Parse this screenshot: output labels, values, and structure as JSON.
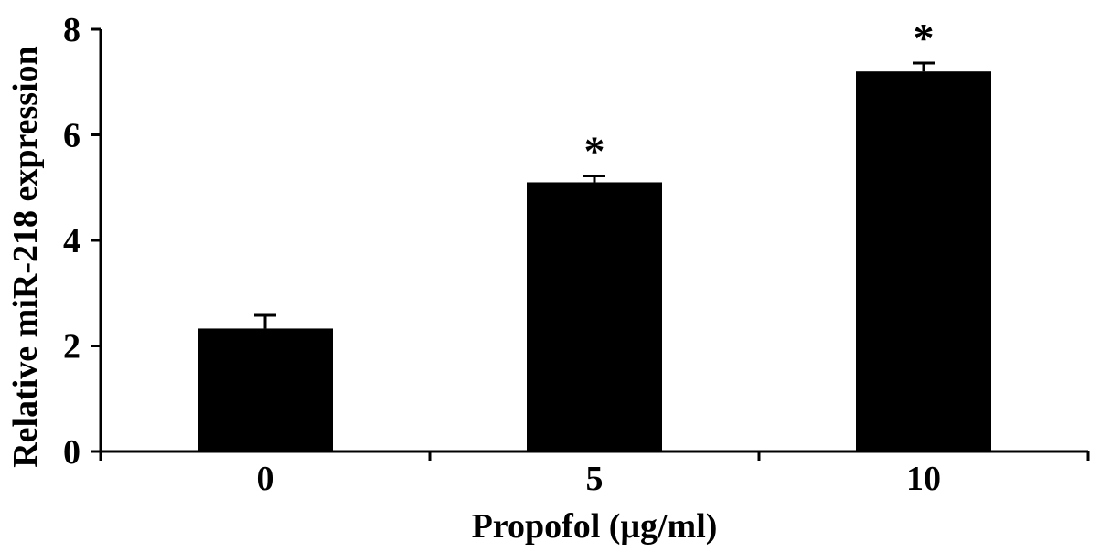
{
  "chart_data": {
    "type": "bar",
    "title": "",
    "xlabel": "Propofol (μg/ml)",
    "ylabel": "Relative miR-218 expression",
    "categories": [
      "0",
      "5",
      "10"
    ],
    "values": [
      2.33,
      5.1,
      7.2
    ],
    "errors": [
      0.25,
      0.12,
      0.16
    ],
    "annotations": [
      "",
      "*",
      "*"
    ],
    "ylim": [
      0,
      8
    ],
    "yticks": [
      0,
      2,
      4,
      6,
      8
    ],
    "bar_color": "#000000",
    "grid": false,
    "legend": "none"
  }
}
